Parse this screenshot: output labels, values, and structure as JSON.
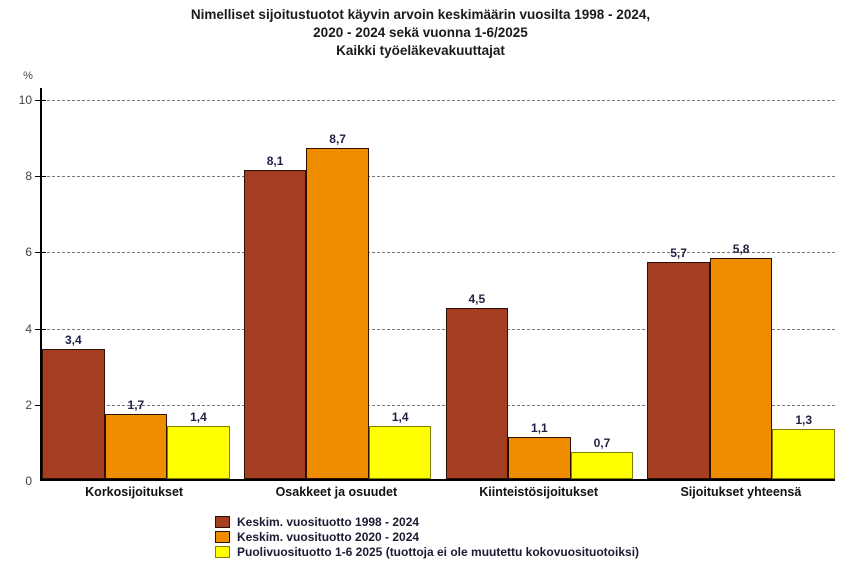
{
  "chart_data": {
    "type": "bar",
    "title_lines": [
      "Nimelliset sijoitustuotot käyvin arvoin keskimäärin vuosilta 1998 - 2024,",
      "2020 - 2024 sekä vuonna 1-6/2025",
      "Kaikki työeläkevakuuttajat"
    ],
    "ylabel": "%",
    "ylim": [
      0,
      10
    ],
    "yticks": [
      0,
      2,
      4,
      6,
      8,
      10
    ],
    "grid": "horizontal-dashed",
    "legend_position": "bottom-left",
    "categories": [
      "Korkosijoitukset",
      "Osakkeet ja osuudet",
      "Kiinteistösijoitukset",
      "Sijoitukset yhteensä"
    ],
    "series": [
      {
        "name": "Keskim. vuosituotto 1998 - 2024",
        "color": "#A53E20",
        "border_color": "#2B1005",
        "values": [
          3.4,
          8.1,
          4.5,
          5.7
        ],
        "labels": [
          "3,4",
          "8,1",
          "4,5",
          "5,7"
        ]
      },
      {
        "name": "Keskim. vuosituotto 2020 - 2024",
        "color": "#F08C00",
        "border_color": "#2B1005",
        "values": [
          1.7,
          8.7,
          1.1,
          5.8
        ],
        "labels": [
          "1,7",
          "8,7",
          "1,1",
          "5,8"
        ]
      },
      {
        "name": "Puolivuosituotto 1-6 2025 (tuottoja ei ole muutettu kokovuosituotoiksi)",
        "color": "#FFFF00",
        "border_color": "#7F7F00",
        "values": [
          1.4,
          1.4,
          0.7,
          1.3
        ],
        "labels": [
          "1,4",
          "1,4",
          "0,7",
          "1,3"
        ]
      }
    ]
  }
}
